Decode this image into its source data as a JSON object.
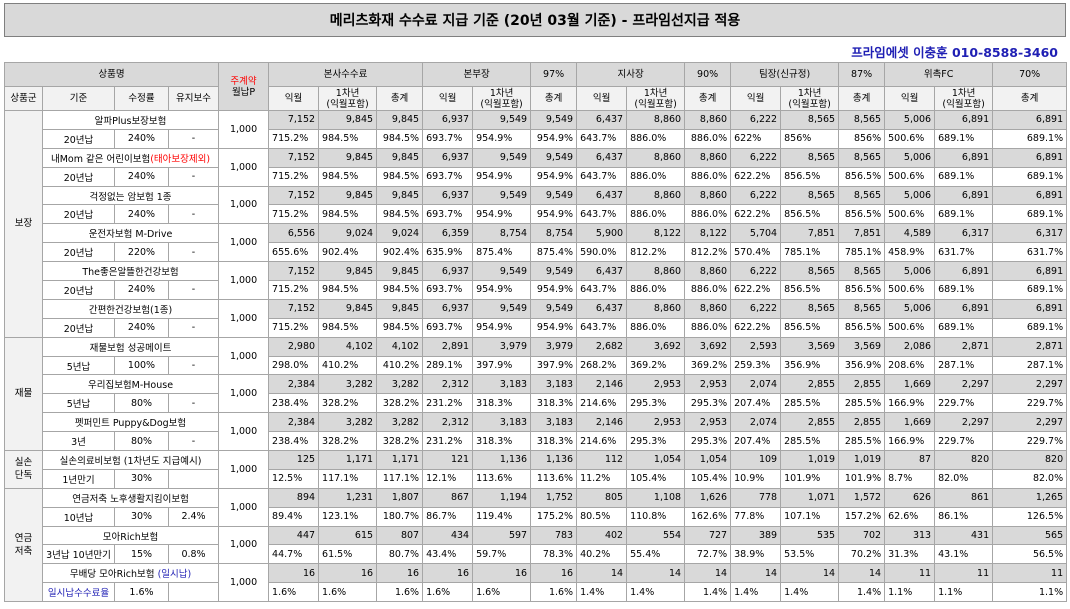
{
  "title": "메리츠화재 수수료 지급 기준 (20년 03월 기준) - 프라임선지급 적용",
  "contact": "프라임에셋 이충훈 010-8588-3460",
  "headers": {
    "product": "상품명",
    "premium_top": "주계약",
    "premium_bottom": "월납P",
    "group": "상품군",
    "basis": "기준",
    "rate": "수정률",
    "maint": "유지보수",
    "sections": [
      {
        "name": "본사수수료",
        "pct": ""
      },
      {
        "name": "본부장",
        "pct": "97%"
      },
      {
        "name": "지사장",
        "pct": "90%"
      },
      {
        "name": "팀장(신규정)",
        "pct": "87%"
      },
      {
        "name": "위촉FC",
        "pct": "70%"
      }
    ],
    "sub1": "익월",
    "sub2": "1차년\n(익월포함)",
    "sub3": "총계"
  },
  "groups": [
    {
      "name": "보장",
      "products": [
        {
          "name": "알파Plus보장보험",
          "name_red": "",
          "basis": "20년납",
          "rate": "240%",
          "maint": "-",
          "premium": "1,000",
          "vals": [
            "7,152",
            "9,845",
            "9,845",
            "6,937",
            "9,549",
            "9,549",
            "6,437",
            "8,860",
            "8,860",
            "6,222",
            "8,565",
            "8,565",
            "5,006",
            "6,891",
            "6,891"
          ],
          "pcts": [
            "715.2%",
            "984.5%",
            "984.5%",
            "693.7%",
            "954.9%",
            "954.9%",
            "643.7%",
            "886.0%",
            "886.0%",
            "622%",
            "856%",
            "856%",
            "500.6%",
            "689.1%",
            "689.1%"
          ]
        },
        {
          "name": "내Mom 같은 어린이보험",
          "name_red": "(태아보장제외)",
          "basis": "20년납",
          "rate": "240%",
          "maint": "-",
          "premium": "1,000",
          "vals": [
            "7,152",
            "9,845",
            "9,845",
            "6,937",
            "9,549",
            "9,549",
            "6,437",
            "8,860",
            "8,860",
            "6,222",
            "8,565",
            "8,565",
            "5,006",
            "6,891",
            "6,891"
          ],
          "pcts": [
            "715.2%",
            "984.5%",
            "984.5%",
            "693.7%",
            "954.9%",
            "954.9%",
            "643.7%",
            "886.0%",
            "886.0%",
            "622.2%",
            "856.5%",
            "856.5%",
            "500.6%",
            "689.1%",
            "689.1%"
          ]
        },
        {
          "name": "걱정없는 암보험 1종",
          "name_red": "",
          "basis": "20년납",
          "rate": "240%",
          "maint": "-",
          "premium": "1,000",
          "vals": [
            "7,152",
            "9,845",
            "9,845",
            "6,937",
            "9,549",
            "9,549",
            "6,437",
            "8,860",
            "8,860",
            "6,222",
            "8,565",
            "8,565",
            "5,006",
            "6,891",
            "6,891"
          ],
          "pcts": [
            "715.2%",
            "984.5%",
            "984.5%",
            "693.7%",
            "954.9%",
            "954.9%",
            "643.7%",
            "886.0%",
            "886.0%",
            "622.2%",
            "856.5%",
            "856.5%",
            "500.6%",
            "689.1%",
            "689.1%"
          ]
        },
        {
          "name": "운전자보험 M-Drive",
          "name_red": "",
          "basis": "20년납",
          "rate": "220%",
          "maint": "-",
          "premium": "1,000",
          "vals": [
            "6,556",
            "9,024",
            "9,024",
            "6,359",
            "8,754",
            "8,754",
            "5,900",
            "8,122",
            "8,122",
            "5,704",
            "7,851",
            "7,851",
            "4,589",
            "6,317",
            "6,317"
          ],
          "pcts": [
            "655.6%",
            "902.4%",
            "902.4%",
            "635.9%",
            "875.4%",
            "875.4%",
            "590.0%",
            "812.2%",
            "812.2%",
            "570.4%",
            "785.1%",
            "785.1%",
            "458.9%",
            "631.7%",
            "631.7%"
          ]
        },
        {
          "name": "The좋은알뜰한건강보험",
          "name_red": "",
          "basis": "20년납",
          "rate": "240%",
          "maint": "-",
          "premium": "1,000",
          "vals": [
            "7,152",
            "9,845",
            "9,845",
            "6,937",
            "9,549",
            "9,549",
            "6,437",
            "8,860",
            "8,860",
            "6,222",
            "8,565",
            "8,565",
            "5,006",
            "6,891",
            "6,891"
          ],
          "pcts": [
            "715.2%",
            "984.5%",
            "984.5%",
            "693.7%",
            "954.9%",
            "954.9%",
            "643.7%",
            "886.0%",
            "886.0%",
            "622.2%",
            "856.5%",
            "856.5%",
            "500.6%",
            "689.1%",
            "689.1%"
          ]
        },
        {
          "name": "간편한건강보험(1종)",
          "name_red": "",
          "basis": "20년납",
          "rate": "240%",
          "maint": "-",
          "premium": "1,000",
          "vals": [
            "7,152",
            "9,845",
            "9,845",
            "6,937",
            "9,549",
            "9,549",
            "6,437",
            "8,860",
            "8,860",
            "6,222",
            "8,565",
            "8,565",
            "5,006",
            "6,891",
            "6,891"
          ],
          "pcts": [
            "715.2%",
            "984.5%",
            "984.5%",
            "693.7%",
            "954.9%",
            "954.9%",
            "643.7%",
            "886.0%",
            "886.0%",
            "622.2%",
            "856.5%",
            "856.5%",
            "500.6%",
            "689.1%",
            "689.1%"
          ]
        }
      ]
    },
    {
      "name": "재물",
      "products": [
        {
          "name": "재물보험 성공메이트",
          "name_red": "",
          "basis": "5년납",
          "rate": "100%",
          "maint": "-",
          "premium": "1,000",
          "vals": [
            "2,980",
            "4,102",
            "4,102",
            "2,891",
            "3,979",
            "3,979",
            "2,682",
            "3,692",
            "3,692",
            "2,593",
            "3,569",
            "3,569",
            "2,086",
            "2,871",
            "2,871"
          ],
          "pcts": [
            "298.0%",
            "410.2%",
            "410.2%",
            "289.1%",
            "397.9%",
            "397.9%",
            "268.2%",
            "369.2%",
            "369.2%",
            "259.3%",
            "356.9%",
            "356.9%",
            "208.6%",
            "287.1%",
            "287.1%"
          ]
        },
        {
          "name": "우리집보험M-House",
          "name_red": "",
          "basis": "5년납",
          "rate": "80%",
          "maint": "-",
          "premium": "1,000",
          "vals": [
            "2,384",
            "3,282",
            "3,282",
            "2,312",
            "3,183",
            "3,183",
            "2,146",
            "2,953",
            "2,953",
            "2,074",
            "2,855",
            "2,855",
            "1,669",
            "2,297",
            "2,297"
          ],
          "pcts": [
            "238.4%",
            "328.2%",
            "328.2%",
            "231.2%",
            "318.3%",
            "318.3%",
            "214.6%",
            "295.3%",
            "295.3%",
            "207.4%",
            "285.5%",
            "285.5%",
            "166.9%",
            "229.7%",
            "229.7%"
          ]
        },
        {
          "name": "펫퍼민트 Puppy&Dog보험",
          "name_red": "",
          "basis": "3년",
          "rate": "80%",
          "maint": "-",
          "premium": "1,000",
          "vals": [
            "2,384",
            "3,282",
            "3,282",
            "2,312",
            "3,183",
            "3,183",
            "2,146",
            "2,953",
            "2,953",
            "2,074",
            "2,855",
            "2,855",
            "1,669",
            "2,297",
            "2,297"
          ],
          "pcts": [
            "238.4%",
            "328.2%",
            "328.2%",
            "231.2%",
            "318.3%",
            "318.3%",
            "214.6%",
            "295.3%",
            "295.3%",
            "207.4%",
            "285.5%",
            "285.5%",
            "166.9%",
            "229.7%",
            "229.7%"
          ]
        }
      ]
    },
    {
      "name": "실손\n단독",
      "products": [
        {
          "name": "실손의료비보험 (1차년도 지급예시)",
          "name_red": "",
          "basis": "1년만기",
          "rate": "30%",
          "maint": "",
          "premium": "1,000",
          "vals": [
            "125",
            "1,171",
            "1,171",
            "121",
            "1,136",
            "1,136",
            "112",
            "1,054",
            "1,054",
            "109",
            "1,019",
            "1,019",
            "87",
            "820",
            "820"
          ],
          "pcts": [
            "12.5%",
            "117.1%",
            "117.1%",
            "12.1%",
            "113.6%",
            "113.6%",
            "11.2%",
            "105.4%",
            "105.4%",
            "10.9%",
            "101.9%",
            "101.9%",
            "8.7%",
            "82.0%",
            "82.0%"
          ]
        }
      ]
    },
    {
      "name": "연금\n저축",
      "products": [
        {
          "name": "연금저축 노후생활지킴이보험",
          "name_red": "",
          "basis": "10년납",
          "rate": "30%",
          "maint": "2.4%",
          "premium": "1,000",
          "vals": [
            "894",
            "1,231",
            "1,807",
            "867",
            "1,194",
            "1,752",
            "805",
            "1,108",
            "1,626",
            "778",
            "1,071",
            "1,572",
            "626",
            "861",
            "1,265"
          ],
          "pcts": [
            "89.4%",
            "123.1%",
            "180.7%",
            "86.7%",
            "119.4%",
            "175.2%",
            "80.5%",
            "110.8%",
            "162.6%",
            "77.8%",
            "107.1%",
            "157.2%",
            "62.6%",
            "86.1%",
            "126.5%"
          ]
        },
        {
          "name": "모아Rich보험",
          "name_red": "",
          "basis": "3년납 10년만기",
          "rate": "15%",
          "maint": "0.8%",
          "premium": "1,000",
          "vals": [
            "447",
            "615",
            "807",
            "434",
            "597",
            "783",
            "402",
            "554",
            "727",
            "389",
            "535",
            "702",
            "313",
            "431",
            "565"
          ],
          "pcts": [
            "44.7%",
            "61.5%",
            "80.7%",
            "43.4%",
            "59.7%",
            "78.3%",
            "40.2%",
            "55.4%",
            "72.7%",
            "38.9%",
            "53.5%",
            "70.2%",
            "31.3%",
            "43.1%",
            "56.5%"
          ]
        },
        {
          "name": "무배당 모아Rich보험 ",
          "name_blue": "(일시납)",
          "name_red": "",
          "basis": "일시납수수료율",
          "basis_blue": true,
          "rate": "1.6%",
          "maint": "",
          "premium": "1,000",
          "vals": [
            "16",
            "16",
            "16",
            "16",
            "16",
            "16",
            "14",
            "14",
            "14",
            "14",
            "14",
            "14",
            "11",
            "11",
            "11"
          ],
          "pcts": [
            "1.6%",
            "1.6%",
            "1.6%",
            "1.6%",
            "1.6%",
            "1.6%",
            "1.4%",
            "1.4%",
            "1.4%",
            "1.4%",
            "1.4%",
            "1.4%",
            "1.1%",
            "1.1%",
            "1.1%"
          ]
        }
      ]
    }
  ]
}
